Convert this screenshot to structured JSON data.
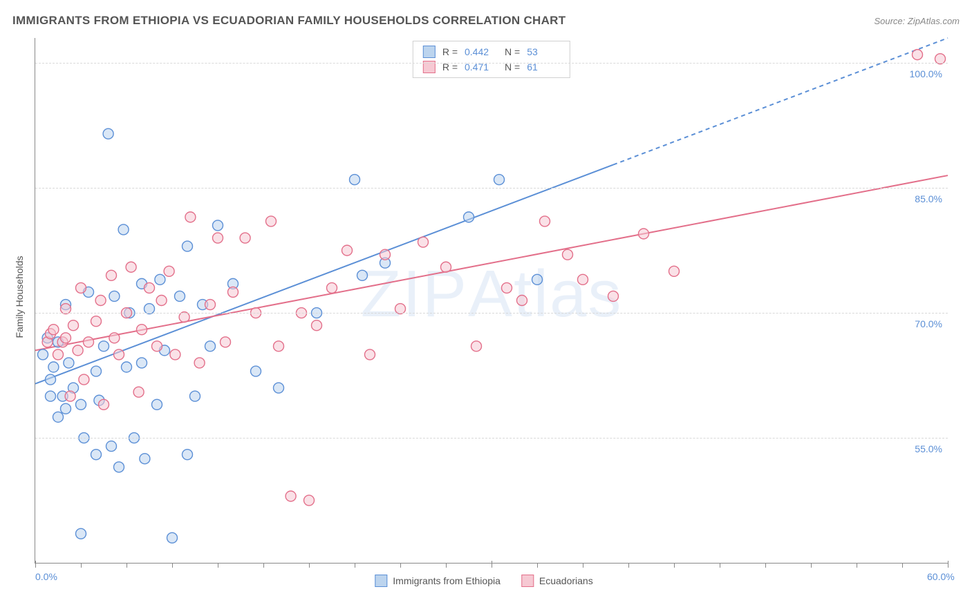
{
  "title": "IMMIGRANTS FROM ETHIOPIA VS ECUADORIAN FAMILY HOUSEHOLDS CORRELATION CHART",
  "source": "Source: ZipAtlas.com",
  "watermark": "ZIPAtlas",
  "yaxis_title": "Family Households",
  "chart": {
    "type": "scatter",
    "xlim": [
      0,
      60
    ],
    "ylim": [
      40,
      103
    ],
    "x_ticks": [
      0,
      30,
      60
    ],
    "x_tick_labels": [
      "0.0%",
      "",
      "60.0%"
    ],
    "x_minor_tick_step": 3,
    "y_gridlines": [
      55,
      70,
      85,
      100
    ],
    "y_gridline_labels": [
      "55.0%",
      "70.0%",
      "85.0%",
      "100.0%"
    ],
    "grid_color": "#d8d8d8",
    "background_color": "#ffffff",
    "axis_color": "#888888",
    "label_color": "#5b8fd6",
    "label_fontsize": 14,
    "title_color": "#555555",
    "title_fontsize": 17,
    "marker_radius": 7.5,
    "marker_stroke_width": 1.4,
    "trend_line_width": 2,
    "series": [
      {
        "name": "Immigrants from Ethiopia",
        "fill": "#bcd4ee",
        "stroke": "#5b8fd6",
        "fill_opacity": 0.55,
        "r_value": "0.442",
        "n_value": "53",
        "trend": {
          "x1": 0,
          "y1": 61.5,
          "x2": 60,
          "y2": 103,
          "solid_until_x": 38
        },
        "points": [
          [
            0.5,
            65
          ],
          [
            0.8,
            67
          ],
          [
            1,
            62
          ],
          [
            1,
            60
          ],
          [
            1.2,
            63.5
          ],
          [
            1.5,
            57.5
          ],
          [
            1.5,
            66.5
          ],
          [
            1.8,
            60
          ],
          [
            2,
            58.5
          ],
          [
            2,
            71
          ],
          [
            2.2,
            64
          ],
          [
            2.5,
            61
          ],
          [
            3,
            43.5
          ],
          [
            3,
            59
          ],
          [
            3.2,
            55
          ],
          [
            3.5,
            72.5
          ],
          [
            4,
            53
          ],
          [
            4,
            63
          ],
          [
            4.2,
            59.5
          ],
          [
            4.5,
            66
          ],
          [
            4.8,
            91.5
          ],
          [
            5,
            54
          ],
          [
            5.2,
            72
          ],
          [
            5.5,
            51.5
          ],
          [
            5.8,
            80
          ],
          [
            6,
            63.5
          ],
          [
            6.2,
            70
          ],
          [
            6.5,
            55
          ],
          [
            7,
            73.5
          ],
          [
            7,
            64
          ],
          [
            7.2,
            52.5
          ],
          [
            7.5,
            70.5
          ],
          [
            8,
            59
          ],
          [
            8.2,
            74
          ],
          [
            8.5,
            65.5
          ],
          [
            9,
            43
          ],
          [
            9.5,
            72
          ],
          [
            10,
            53
          ],
          [
            10,
            78
          ],
          [
            10.5,
            60
          ],
          [
            11,
            71
          ],
          [
            11.5,
            66
          ],
          [
            12,
            80.5
          ],
          [
            13,
            73.5
          ],
          [
            14.5,
            63
          ],
          [
            16,
            61
          ],
          [
            18.5,
            70
          ],
          [
            21,
            86
          ],
          [
            21.5,
            74.5
          ],
          [
            23,
            76
          ],
          [
            28.5,
            81.5
          ],
          [
            30.5,
            86
          ],
          [
            33,
            74
          ]
        ]
      },
      {
        "name": "Ecuadorians",
        "fill": "#f6c9d3",
        "stroke": "#e36f8a",
        "fill_opacity": 0.55,
        "r_value": "0.471",
        "n_value": "61",
        "trend": {
          "x1": 0,
          "y1": 65.5,
          "x2": 60,
          "y2": 86.5,
          "solid_until_x": 60
        },
        "points": [
          [
            0.8,
            66.5
          ],
          [
            1,
            67.5
          ],
          [
            1.2,
            68
          ],
          [
            1.5,
            65
          ],
          [
            1.8,
            66.5
          ],
          [
            2,
            67
          ],
          [
            2,
            70.5
          ],
          [
            2.3,
            60
          ],
          [
            2.5,
            68.5
          ],
          [
            2.8,
            65.5
          ],
          [
            3,
            73
          ],
          [
            3.2,
            62
          ],
          [
            3.5,
            66.5
          ],
          [
            4,
            69
          ],
          [
            4.3,
            71.5
          ],
          [
            4.5,
            59
          ],
          [
            5,
            74.5
          ],
          [
            5.2,
            67
          ],
          [
            5.5,
            65
          ],
          [
            6,
            70
          ],
          [
            6.3,
            75.5
          ],
          [
            6.8,
            60.5
          ],
          [
            7,
            68
          ],
          [
            7.5,
            73
          ],
          [
            8,
            66
          ],
          [
            8.3,
            71.5
          ],
          [
            8.8,
            75
          ],
          [
            9.2,
            65
          ],
          [
            9.8,
            69.5
          ],
          [
            10.2,
            81.5
          ],
          [
            10.8,
            64
          ],
          [
            11.5,
            71
          ],
          [
            12,
            79
          ],
          [
            12.5,
            66.5
          ],
          [
            13,
            72.5
          ],
          [
            13.8,
            79
          ],
          [
            14.5,
            70
          ],
          [
            15.5,
            81
          ],
          [
            16,
            66
          ],
          [
            16.8,
            48
          ],
          [
            17.5,
            70
          ],
          [
            18,
            47.5
          ],
          [
            18.5,
            68.5
          ],
          [
            19.5,
            73
          ],
          [
            20.5,
            77.5
          ],
          [
            22,
            65
          ],
          [
            23,
            77
          ],
          [
            24,
            70.5
          ],
          [
            25.5,
            78.5
          ],
          [
            27,
            75.5
          ],
          [
            29,
            66
          ],
          [
            31,
            73
          ],
          [
            32,
            71.5
          ],
          [
            33.5,
            81
          ],
          [
            35,
            77
          ],
          [
            36,
            74
          ],
          [
            38,
            72
          ],
          [
            40,
            79.5
          ],
          [
            42,
            75
          ],
          [
            58,
            101
          ],
          [
            59.5,
            100.5
          ]
        ]
      }
    ]
  },
  "legend_bottom": [
    {
      "label": "Immigrants from Ethiopia",
      "fill": "#bcd4ee",
      "stroke": "#5b8fd6"
    },
    {
      "label": "Ecuadorians",
      "fill": "#f6c9d3",
      "stroke": "#e36f8a"
    }
  ]
}
